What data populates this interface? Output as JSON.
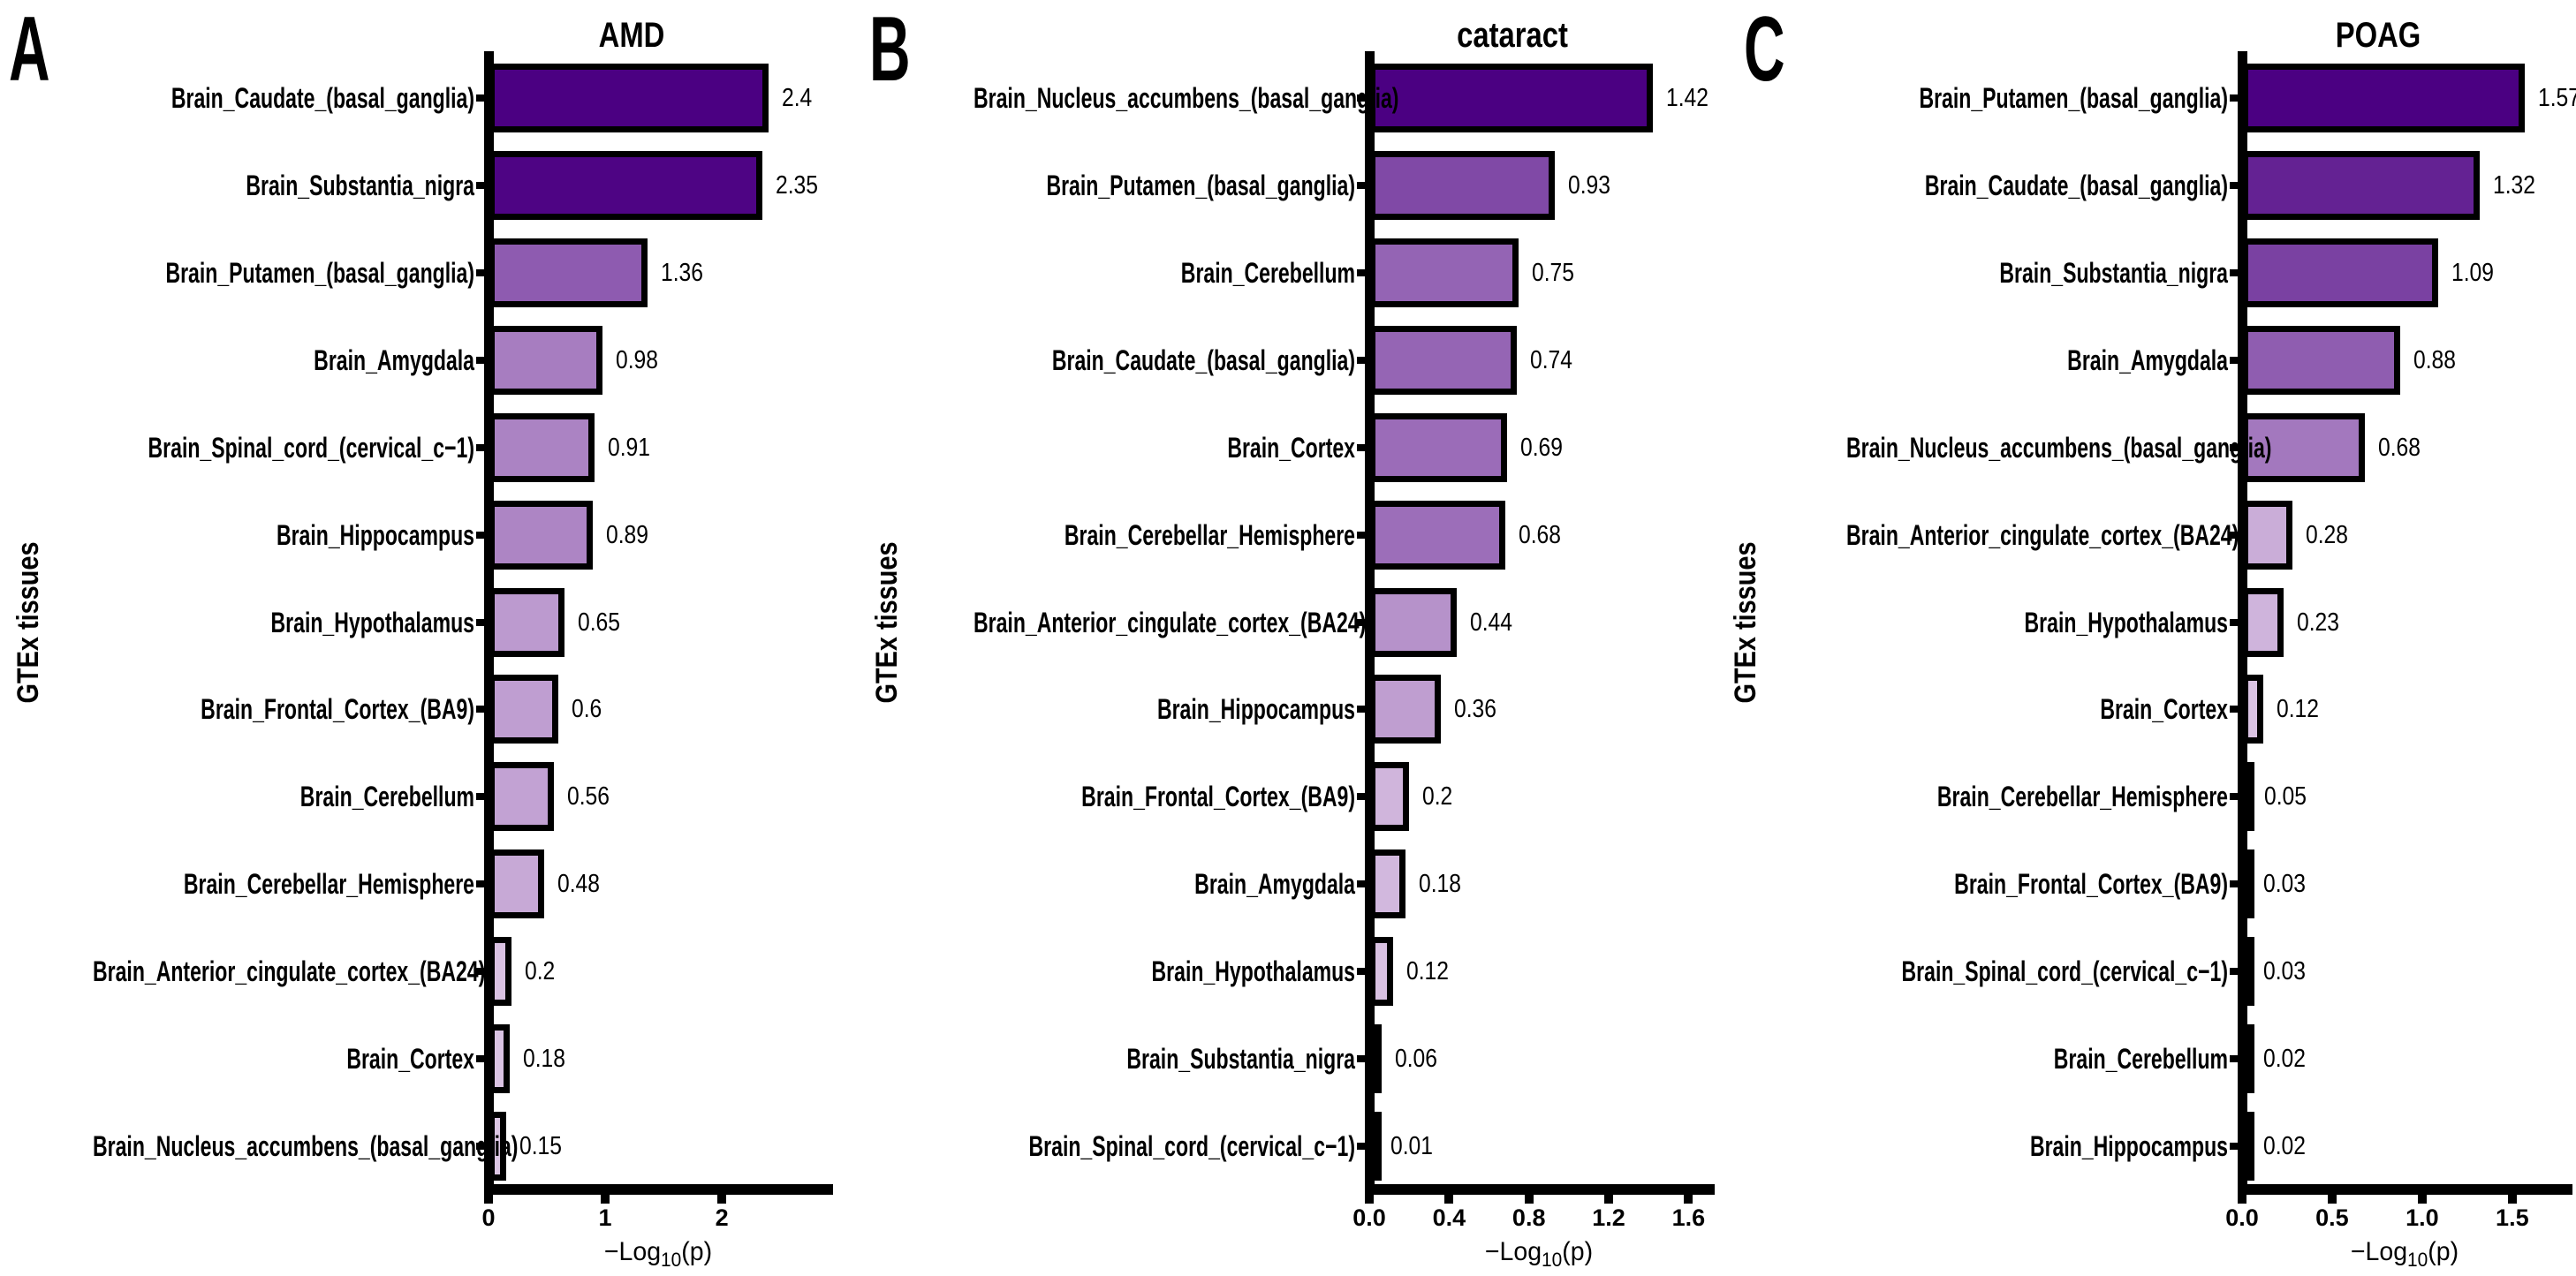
{
  "figure": {
    "background": "#ffffff",
    "axis_color": "#000000",
    "bar_border_color": "#000000",
    "color_scale": {
      "low": "#E6D3EB",
      "high": "#4B0082"
    }
  },
  "chart_data": [
    {
      "type": "bar",
      "orientation": "horizontal",
      "panel_letter": "A",
      "title": "AMD",
      "ylabel": "GTEx tissues",
      "xlabel_parts": {
        "pre": "−Log",
        "sub": "10",
        "post": "(p)"
      },
      "xlim": [
        0,
        2.9
      ],
      "x_tick_labels": [
        "0",
        "1",
        "2"
      ],
      "x_tick_values": [
        0,
        1,
        2
      ],
      "grid": false,
      "bars": [
        {
          "category": "Brain_Caudate_(basal_ganglia)",
          "value": 2.4,
          "value_label": "2.4"
        },
        {
          "category": "Brain_Substantia_nigra",
          "value": 2.35,
          "value_label": "2.35"
        },
        {
          "category": "Brain_Putamen_(basal_ganglia)",
          "value": 1.36,
          "value_label": "1.36"
        },
        {
          "category": "Brain_Amygdala",
          "value": 0.98,
          "value_label": "0.98"
        },
        {
          "category": "Brain_Spinal_cord_(cervical_c−1)",
          "value": 0.91,
          "value_label": "0.91"
        },
        {
          "category": "Brain_Hippocampus",
          "value": 0.89,
          "value_label": "0.89"
        },
        {
          "category": "Brain_Hypothalamus",
          "value": 0.65,
          "value_label": "0.65"
        },
        {
          "category": "Brain_Frontal_Cortex_(BA9)",
          "value": 0.6,
          "value_label": "0.6"
        },
        {
          "category": "Brain_Cerebellum",
          "value": 0.56,
          "value_label": "0.56"
        },
        {
          "category": "Brain_Cerebellar_Hemisphere",
          "value": 0.48,
          "value_label": "0.48"
        },
        {
          "category": "Brain_Anterior_cingulate_cortex_(BA24)",
          "value": 0.2,
          "value_label": "0.2"
        },
        {
          "category": "Brain_Cortex",
          "value": 0.18,
          "value_label": "0.18"
        },
        {
          "category": "Brain_Nucleus_accumbens_(basal_ganglia)",
          "value": 0.15,
          "value_label": "0.15"
        }
      ]
    },
    {
      "type": "bar",
      "orientation": "horizontal",
      "panel_letter": "B",
      "title": "cataract",
      "ylabel": "GTEx tissues",
      "xlabel_parts": {
        "pre": "−Log",
        "sub": "10",
        "post": "(p)"
      },
      "xlim": [
        0,
        1.7
      ],
      "x_tick_labels": [
        "0.0",
        "0.4",
        "0.8",
        "1.2",
        "1.6"
      ],
      "x_tick_values": [
        0,
        0.4,
        0.8,
        1.2,
        1.6
      ],
      "grid": false,
      "bars": [
        {
          "category": "Brain_Nucleus_accumbens_(basal_ganglia)",
          "value": 1.42,
          "value_label": "1.42"
        },
        {
          "category": "Brain_Putamen_(basal_ganglia)",
          "value": 0.93,
          "value_label": "0.93"
        },
        {
          "category": "Brain_Cerebellum",
          "value": 0.75,
          "value_label": "0.75"
        },
        {
          "category": "Brain_Caudate_(basal_ganglia)",
          "value": 0.74,
          "value_label": "0.74"
        },
        {
          "category": "Brain_Cortex",
          "value": 0.69,
          "value_label": "0.69"
        },
        {
          "category": "Brain_Cerebellar_Hemisphere",
          "value": 0.68,
          "value_label": "0.68"
        },
        {
          "category": "Brain_Anterior_cingulate_cortex_(BA24)",
          "value": 0.44,
          "value_label": "0.44"
        },
        {
          "category": "Brain_Hippocampus",
          "value": 0.36,
          "value_label": "0.36"
        },
        {
          "category": "Brain_Frontal_Cortex_(BA9)",
          "value": 0.2,
          "value_label": "0.2"
        },
        {
          "category": "Brain_Amygdala",
          "value": 0.18,
          "value_label": "0.18"
        },
        {
          "category": "Brain_Hypothalamus",
          "value": 0.12,
          "value_label": "0.12"
        },
        {
          "category": "Brain_Substantia_nigra",
          "value": 0.06,
          "value_label": "0.06"
        },
        {
          "category": "Brain_Spinal_cord_(cervical_c−1)",
          "value": 0.01,
          "value_label": "0.01"
        }
      ]
    },
    {
      "type": "bar",
      "orientation": "horizontal",
      "panel_letter": "C",
      "title": "POAG",
      "ylabel": "GTEx tissues",
      "xlabel_parts": {
        "pre": "−Log",
        "sub": "10",
        "post": "(p)"
      },
      "xlim": [
        0,
        1.8
      ],
      "x_tick_labels": [
        "0.0",
        "0.5",
        "1.0",
        "1.5"
      ],
      "x_tick_values": [
        0,
        0.5,
        1.0,
        1.5
      ],
      "grid": false,
      "bars": [
        {
          "category": "Brain_Putamen_(basal_ganglia)",
          "value": 1.57,
          "value_label": "1.57"
        },
        {
          "category": "Brain_Caudate_(basal_ganglia)",
          "value": 1.32,
          "value_label": "1.32"
        },
        {
          "category": "Brain_Substantia_nigra",
          "value": 1.09,
          "value_label": "1.09"
        },
        {
          "category": "Brain_Amygdala",
          "value": 0.88,
          "value_label": "0.88"
        },
        {
          "category": "Brain_Nucleus_accumbens_(basal_ganglia)",
          "value": 0.68,
          "value_label": "0.68"
        },
        {
          "category": "Brain_Anterior_cingulate_cortex_(BA24)",
          "value": 0.28,
          "value_label": "0.28"
        },
        {
          "category": "Brain_Hypothalamus",
          "value": 0.23,
          "value_label": "0.23"
        },
        {
          "category": "Brain_Cortex",
          "value": 0.12,
          "value_label": "0.12"
        },
        {
          "category": "Brain_Cerebellar_Hemisphere",
          "value": 0.05,
          "value_label": "0.05"
        },
        {
          "category": "Brain_Frontal_Cortex_(BA9)",
          "value": 0.03,
          "value_label": "0.03"
        },
        {
          "category": "Brain_Spinal_cord_(cervical_c−1)",
          "value": 0.03,
          "value_label": "0.03"
        },
        {
          "category": "Brain_Cerebellum",
          "value": 0.02,
          "value_label": "0.02"
        },
        {
          "category": "Brain_Hippocampus",
          "value": 0.02,
          "value_label": "0.02"
        }
      ]
    }
  ]
}
